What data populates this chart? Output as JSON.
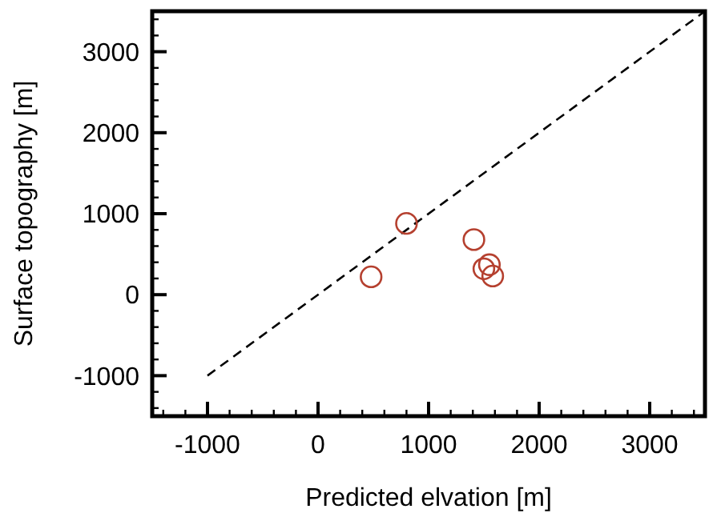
{
  "chart_data": {
    "type": "scatter",
    "xlabel": "Predicted elvation [m]",
    "ylabel": "Surface topography [m]",
    "xlim": [
      -1500,
      3500
    ],
    "ylim": [
      -1500,
      3500
    ],
    "xticks": [
      {
        "value": -1400,
        "label": null
      },
      {
        "value": -1200,
        "label": null
      },
      -1000,
      {
        "value": -800,
        "label": null
      },
      {
        "value": -600,
        "label": null
      },
      {
        "value": -400,
        "label": null
      },
      {
        "value": -200,
        "label": null
      },
      0,
      {
        "value": 200,
        "label": null
      },
      {
        "value": 400,
        "label": null
      },
      {
        "value": 600,
        "label": null
      },
      {
        "value": 800,
        "label": null
      },
      1000,
      {
        "value": 1200,
        "label": null
      },
      {
        "value": 1400,
        "label": null
      },
      {
        "value": 1600,
        "label": null
      },
      {
        "value": 1800,
        "label": null
      },
      2000,
      {
        "value": 2200,
        "label": null
      },
      {
        "value": 2400,
        "label": null
      },
      {
        "value": 2600,
        "label": null
      },
      {
        "value": 2800,
        "label": null
      },
      3000,
      {
        "value": 3200,
        "label": null
      },
      {
        "value": 3400,
        "label": null
      }
    ],
    "yticks": [
      {
        "value": -1400,
        "label": null
      },
      {
        "value": -1200,
        "label": null
      },
      -1000,
      {
        "value": -800,
        "label": null
      },
      {
        "value": -600,
        "label": null
      },
      {
        "value": -400,
        "label": null
      },
      {
        "value": -200,
        "label": null
      },
      0,
      {
        "value": 200,
        "label": null
      },
      {
        "value": 400,
        "label": null
      },
      {
        "value": 600,
        "label": null
      },
      {
        "value": 800,
        "label": null
      },
      1000,
      {
        "value": 1200,
        "label": null
      },
      {
        "value": 1400,
        "label": null
      },
      {
        "value": 1600,
        "label": null
      },
      {
        "value": 1800,
        "label": null
      },
      2000,
      {
        "value": 2200,
        "label": null
      },
      {
        "value": 2400,
        "label": null
      },
      {
        "value": 2600,
        "label": null
      },
      {
        "value": 2800,
        "label": null
      },
      3000,
      {
        "value": 3200,
        "label": null
      },
      {
        "value": 3400,
        "label": null
      }
    ],
    "series": [
      {
        "type": "line",
        "color": "#000000",
        "line_style": "dashed",
        "marker": "none",
        "x": [
          -1000,
          3500
        ],
        "values": [
          -1000,
          3500
        ]
      },
      {
        "color": "#b5402f",
        "marker": "circle",
        "x": [
          480,
          800,
          1410,
          1550,
          1500,
          1580
        ],
        "values": [
          220,
          880,
          680,
          370,
          320,
          230
        ]
      }
    ],
    "grid": false
  }
}
